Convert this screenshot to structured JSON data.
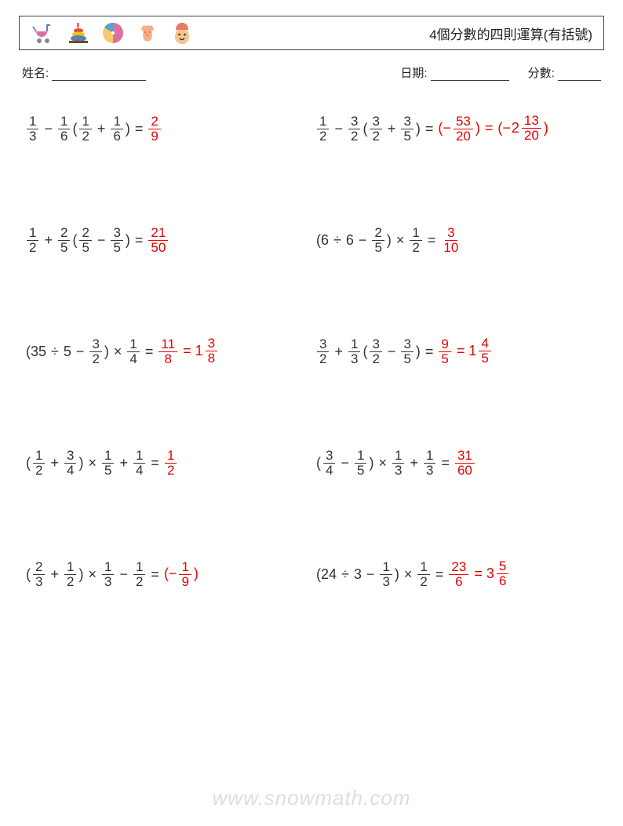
{
  "colors": {
    "text": "#333333",
    "answer": "#e60000",
    "border": "#444444",
    "background": "#ffffff",
    "watermark": "rgba(120,120,120,0.25)"
  },
  "header": {
    "title": "4個分數的四則運算(有括號)",
    "icons": [
      "stroller",
      "rings-toy",
      "beach-ball",
      "onesie",
      "baby"
    ]
  },
  "meta": {
    "name_label": "姓名:",
    "date_label": "日期:",
    "score_label": "分數:"
  },
  "watermark": "www.snowmath.com",
  "problems": [
    {
      "expr": [
        {
          "t": "frac",
          "n": "1",
          "d": "3"
        },
        {
          "t": "op",
          "v": "−"
        },
        {
          "t": "frac",
          "n": "1",
          "d": "6"
        },
        {
          "t": "txt",
          "v": "("
        },
        {
          "t": "frac",
          "n": "1",
          "d": "2"
        },
        {
          "t": "op",
          "v": "+"
        },
        {
          "t": "frac",
          "n": "1",
          "d": "6"
        },
        {
          "t": "txt",
          "v": ")"
        },
        {
          "t": "op",
          "v": "="
        }
      ],
      "ans": [
        {
          "t": "frac",
          "n": "2",
          "d": "9"
        }
      ]
    },
    {
      "expr": [
        {
          "t": "frac",
          "n": "1",
          "d": "2"
        },
        {
          "t": "op",
          "v": "−"
        },
        {
          "t": "frac",
          "n": "3",
          "d": "2"
        },
        {
          "t": "txt",
          "v": "("
        },
        {
          "t": "frac",
          "n": "3",
          "d": "2"
        },
        {
          "t": "op",
          "v": "+"
        },
        {
          "t": "frac",
          "n": "3",
          "d": "5"
        },
        {
          "t": "txt",
          "v": ")"
        },
        {
          "t": "op",
          "v": "="
        }
      ],
      "ans": [
        {
          "t": "txt",
          "v": "(−"
        },
        {
          "t": "frac",
          "n": "53",
          "d": "20"
        },
        {
          "t": "txt",
          "v": ")"
        },
        {
          "t": "op",
          "v": "="
        },
        {
          "t": "txt",
          "v": "(−"
        },
        {
          "t": "mixed",
          "w": "2",
          "n": "13",
          "d": "20"
        },
        {
          "t": "txt",
          "v": ")"
        }
      ]
    },
    {
      "expr": [
        {
          "t": "frac",
          "n": "1",
          "d": "2"
        },
        {
          "t": "op",
          "v": "+"
        },
        {
          "t": "frac",
          "n": "2",
          "d": "5"
        },
        {
          "t": "txt",
          "v": "("
        },
        {
          "t": "frac",
          "n": "2",
          "d": "5"
        },
        {
          "t": "op",
          "v": "−"
        },
        {
          "t": "frac",
          "n": "3",
          "d": "5"
        },
        {
          "t": "txt",
          "v": ")"
        },
        {
          "t": "op",
          "v": "="
        }
      ],
      "ans": [
        {
          "t": "frac",
          "n": "21",
          "d": "50"
        }
      ]
    },
    {
      "expr": [
        {
          "t": "txt",
          "v": "(6"
        },
        {
          "t": "op",
          "v": "÷"
        },
        {
          "t": "txt",
          "v": "6"
        },
        {
          "t": "op",
          "v": "−"
        },
        {
          "t": "frac",
          "n": "2",
          "d": "5"
        },
        {
          "t": "txt",
          "v": ")"
        },
        {
          "t": "op",
          "v": "×"
        },
        {
          "t": "frac",
          "n": "1",
          "d": "2"
        },
        {
          "t": "op",
          "v": "="
        }
      ],
      "ans": [
        {
          "t": "frac",
          "n": "3",
          "d": "10"
        }
      ]
    },
    {
      "expr": [
        {
          "t": "txt",
          "v": "(35"
        },
        {
          "t": "op",
          "v": "÷"
        },
        {
          "t": "txt",
          "v": "5"
        },
        {
          "t": "op",
          "v": "−"
        },
        {
          "t": "frac",
          "n": "3",
          "d": "2"
        },
        {
          "t": "txt",
          "v": ")"
        },
        {
          "t": "op",
          "v": "×"
        },
        {
          "t": "frac",
          "n": "1",
          "d": "4"
        },
        {
          "t": "op",
          "v": "="
        }
      ],
      "ans": [
        {
          "t": "frac",
          "n": "11",
          "d": "8"
        },
        {
          "t": "op",
          "v": "="
        },
        {
          "t": "mixed",
          "w": "1",
          "n": "3",
          "d": "8"
        }
      ]
    },
    {
      "expr": [
        {
          "t": "frac",
          "n": "3",
          "d": "2"
        },
        {
          "t": "op",
          "v": "+"
        },
        {
          "t": "frac",
          "n": "1",
          "d": "3"
        },
        {
          "t": "txt",
          "v": "("
        },
        {
          "t": "frac",
          "n": "3",
          "d": "2"
        },
        {
          "t": "op",
          "v": "−"
        },
        {
          "t": "frac",
          "n": "3",
          "d": "5"
        },
        {
          "t": "txt",
          "v": ")"
        },
        {
          "t": "op",
          "v": "="
        }
      ],
      "ans": [
        {
          "t": "frac",
          "n": "9",
          "d": "5"
        },
        {
          "t": "op",
          "v": "="
        },
        {
          "t": "mixed",
          "w": "1",
          "n": "4",
          "d": "5"
        }
      ]
    },
    {
      "expr": [
        {
          "t": "txt",
          "v": "("
        },
        {
          "t": "frac",
          "n": "1",
          "d": "2"
        },
        {
          "t": "op",
          "v": "+"
        },
        {
          "t": "frac",
          "n": "3",
          "d": "4"
        },
        {
          "t": "txt",
          "v": ")"
        },
        {
          "t": "op",
          "v": "×"
        },
        {
          "t": "frac",
          "n": "1",
          "d": "5"
        },
        {
          "t": "op",
          "v": "+"
        },
        {
          "t": "frac",
          "n": "1",
          "d": "4"
        },
        {
          "t": "op",
          "v": "="
        }
      ],
      "ans": [
        {
          "t": "frac",
          "n": "1",
          "d": "2"
        }
      ]
    },
    {
      "expr": [
        {
          "t": "txt",
          "v": "("
        },
        {
          "t": "frac",
          "n": "3",
          "d": "4"
        },
        {
          "t": "op",
          "v": "−"
        },
        {
          "t": "frac",
          "n": "1",
          "d": "5"
        },
        {
          "t": "txt",
          "v": ")"
        },
        {
          "t": "op",
          "v": "×"
        },
        {
          "t": "frac",
          "n": "1",
          "d": "3"
        },
        {
          "t": "op",
          "v": "+"
        },
        {
          "t": "frac",
          "n": "1",
          "d": "3"
        },
        {
          "t": "op",
          "v": "="
        }
      ],
      "ans": [
        {
          "t": "frac",
          "n": "31",
          "d": "60"
        }
      ]
    },
    {
      "expr": [
        {
          "t": "txt",
          "v": "("
        },
        {
          "t": "frac",
          "n": "2",
          "d": "3"
        },
        {
          "t": "op",
          "v": "+"
        },
        {
          "t": "frac",
          "n": "1",
          "d": "2"
        },
        {
          "t": "txt",
          "v": ")"
        },
        {
          "t": "op",
          "v": "×"
        },
        {
          "t": "frac",
          "n": "1",
          "d": "3"
        },
        {
          "t": "op",
          "v": "−"
        },
        {
          "t": "frac",
          "n": "1",
          "d": "2"
        },
        {
          "t": "op",
          "v": "="
        }
      ],
      "ans": [
        {
          "t": "txt",
          "v": "(−"
        },
        {
          "t": "frac",
          "n": "1",
          "d": "9"
        },
        {
          "t": "txt",
          "v": ")"
        }
      ]
    },
    {
      "expr": [
        {
          "t": "txt",
          "v": "(24"
        },
        {
          "t": "op",
          "v": "÷"
        },
        {
          "t": "txt",
          "v": "3"
        },
        {
          "t": "op",
          "v": "−"
        },
        {
          "t": "frac",
          "n": "1",
          "d": "3"
        },
        {
          "t": "txt",
          "v": ")"
        },
        {
          "t": "op",
          "v": "×"
        },
        {
          "t": "frac",
          "n": "1",
          "d": "2"
        },
        {
          "t": "op",
          "v": "="
        }
      ],
      "ans": [
        {
          "t": "frac",
          "n": "23",
          "d": "6"
        },
        {
          "t": "op",
          "v": "="
        },
        {
          "t": "mixed",
          "w": "3",
          "n": "5",
          "d": "6"
        }
      ]
    }
  ]
}
